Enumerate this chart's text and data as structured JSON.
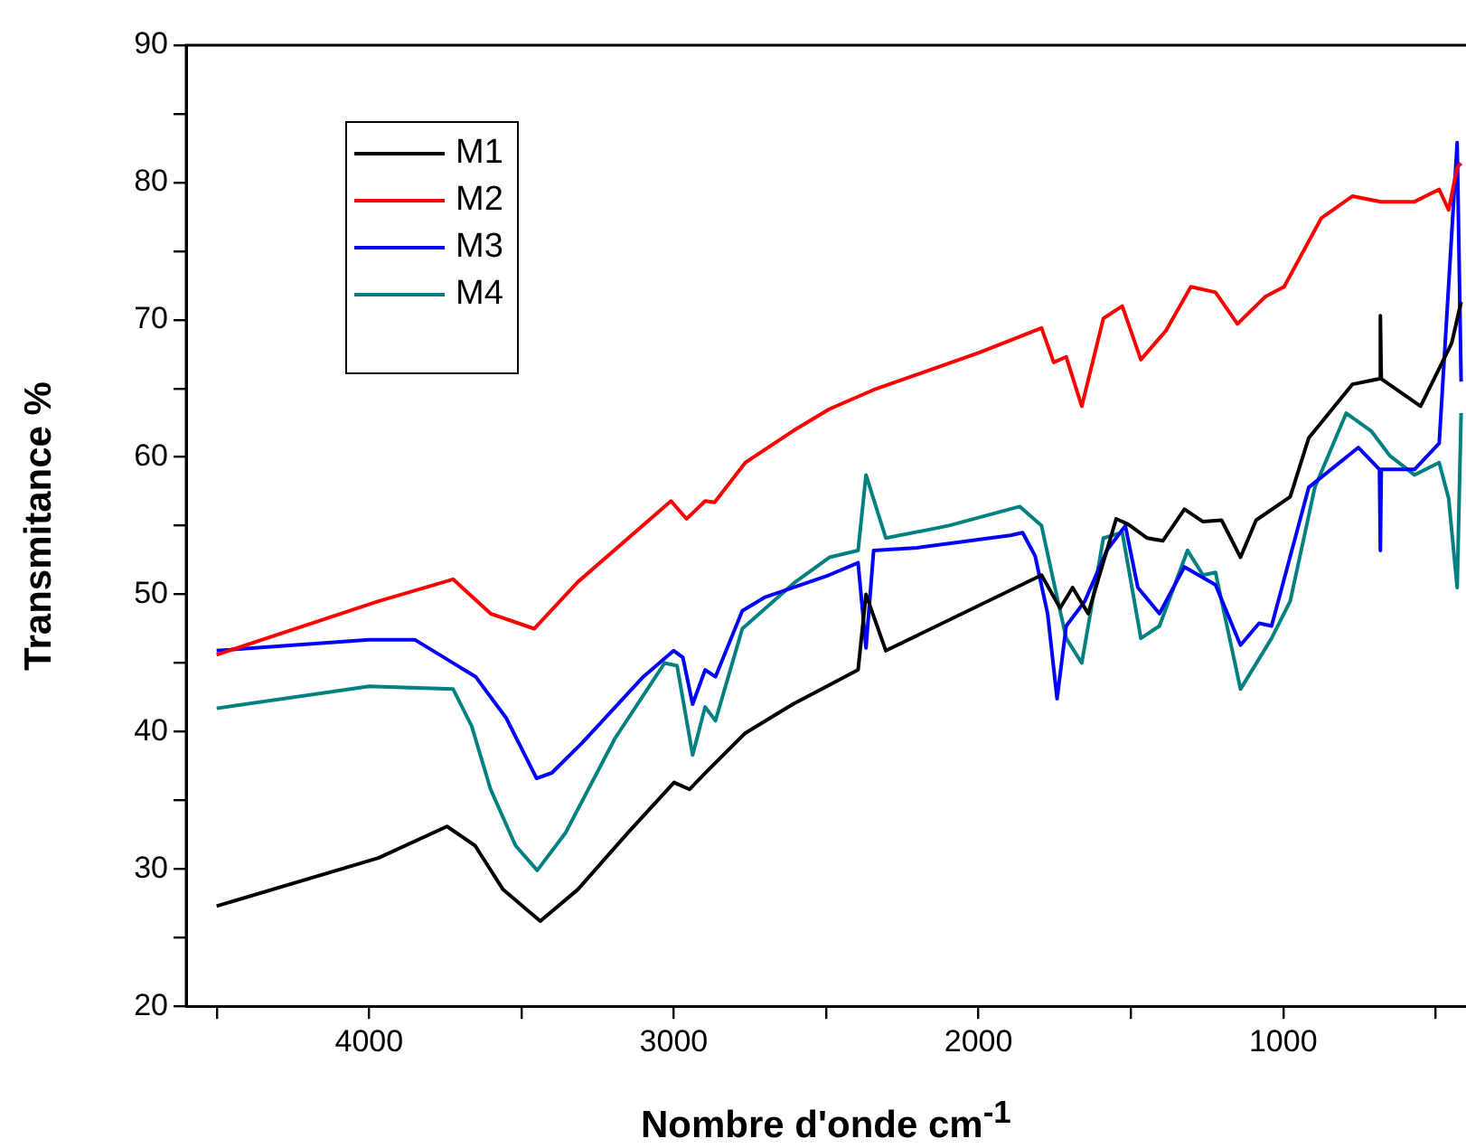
{
  "chart_data": {
    "type": "line",
    "xlabel": "Nombre d'onde cm$^{-1}$",
    "ylabel": "Transmitance %",
    "xlim": [
      4600,
      400
    ],
    "ylim": [
      20,
      90
    ],
    "xticks": [
      {
        "value": 4500,
        "label": null
      },
      4000,
      {
        "value": 3500,
        "label": null
      },
      3000,
      {
        "value": 2500,
        "label": null
      },
      2000,
      {
        "value": 1500,
        "label": null
      },
      1000,
      {
        "value": 500,
        "label": null
      }
    ],
    "yticks": [
      20,
      {
        "value": 25,
        "label": null
      },
      30,
      {
        "value": 35,
        "label": null
      },
      40,
      {
        "value": 45,
        "label": null
      },
      50,
      {
        "value": 55,
        "label": null
      },
      60,
      {
        "value": 65,
        "label": null
      },
      70,
      {
        "value": 75,
        "label": null
      },
      80,
      {
        "value": 85,
        "label": null
      },
      90
    ],
    "grid": false,
    "legend": "top left",
    "marker": "none",
    "line_style": "solid",
    "series": [
      {
        "name": "M1",
        "color": "#000000",
        "x": [
          4500,
          3969,
          3744,
          3652,
          3560,
          3438,
          3315,
          3152,
          2999,
          2948,
          2887,
          2765,
          2609,
          2489,
          2395,
          2369,
          2304,
          1793,
          1732,
          1691,
          1640,
          1548,
          1508,
          1446,
          1395,
          1324,
          1263,
          1202,
          1140,
          1089,
          977,
          916,
          773,
          684,
          681,
          678,
          549,
          447,
          416
        ],
        "values": [
          27.3,
          30.8,
          33.1,
          31.7,
          28.5,
          26.2,
          28.5,
          32.6,
          36.3,
          35.8,
          37.2,
          39.9,
          42.0,
          43.4,
          44.5,
          50.0,
          45.9,
          51.4,
          49.0,
          50.5,
          48.6,
          55.5,
          55.1,
          54.1,
          53.9,
          56.2,
          55.3,
          55.4,
          52.7,
          55.4,
          57.1,
          61.4,
          65.3,
          65.7,
          70.3,
          65.7,
          63.7,
          68.3,
          71.3
        ]
      },
      {
        "name": "M2",
        "color": "#ff0000",
        "x": [
          4500,
          3969,
          3724,
          3601,
          3458,
          3315,
          3009,
          2958,
          2897,
          2866,
          2765,
          2609,
          2489,
          2344,
          1998,
          1793,
          1753,
          1712,
          1661,
          1590,
          1528,
          1467,
          1385,
          1303,
          1222,
          1150,
          1058,
          997,
          875,
          773,
          681,
          569,
          488,
          457,
          429,
          416
        ],
        "values": [
          45.6,
          49.5,
          51.1,
          48.6,
          47.5,
          50.9,
          56.8,
          55.5,
          56.8,
          56.7,
          59.6,
          61.9,
          63.5,
          64.9,
          67.6,
          69.4,
          66.9,
          67.3,
          63.7,
          70.1,
          71.0,
          67.1,
          69.2,
          72.4,
          72.0,
          69.7,
          71.7,
          72.4,
          77.4,
          79.0,
          78.6,
          78.6,
          79.5,
          78.0,
          81.1,
          81.4
        ]
      },
      {
        "name": "M3",
        "color": "#0000ff",
        "x": [
          4500,
          4000,
          3850,
          3650,
          3550,
          3450,
          3400,
          3300,
          3100,
          3000,
          2970,
          2938,
          2897,
          2863,
          2775,
          2700,
          2491,
          2395,
          2369,
          2344,
          2201,
          1895,
          1855,
          1814,
          1773,
          1742,
          1712,
          1651,
          1579,
          1518,
          1477,
          1406,
          1324,
          1222,
          1140,
          1079,
          1038,
          916,
          753,
          684,
          681,
          678,
          569,
          488,
          429,
          416
        ],
        "values": [
          45.9,
          46.7,
          46.7,
          44.0,
          41.0,
          36.6,
          37.0,
          39.2,
          44.0,
          45.9,
          45.4,
          42.0,
          44.5,
          44.0,
          48.8,
          49.8,
          51.4,
          52.3,
          46.1,
          53.2,
          53.4,
          54.3,
          54.5,
          52.8,
          48.6,
          42.4,
          47.7,
          49.5,
          53.2,
          55.0,
          50.5,
          48.6,
          52.0,
          50.7,
          46.3,
          47.9,
          47.7,
          57.8,
          60.7,
          59.1,
          53.2,
          59.1,
          59.1,
          61.0,
          82.9,
          65.5
        ]
      },
      {
        "name": "M4",
        "color": "#008080",
        "x": [
          4500,
          4000,
          3724,
          3663,
          3601,
          3519,
          3448,
          3356,
          3193,
          3030,
          2989,
          2938,
          2897,
          2863,
          2775,
          2601,
          2489,
          2395,
          2369,
          2304,
          2099,
          1865,
          1793,
          1753,
          1712,
          1661,
          1590,
          1528,
          1467,
          1406,
          1314,
          1263,
          1222,
          1140,
          1038,
          977,
          896,
          793,
          711,
          650,
          569,
          488,
          457,
          429,
          416
        ],
        "values": [
          41.7,
          43.3,
          43.1,
          40.4,
          35.8,
          31.7,
          29.9,
          32.6,
          39.5,
          45.0,
          44.8,
          38.3,
          41.8,
          40.8,
          47.5,
          50.9,
          52.7,
          53.2,
          58.7,
          54.1,
          55.0,
          56.4,
          55.0,
          50.9,
          46.8,
          45.0,
          54.1,
          54.5,
          46.8,
          47.7,
          53.2,
          51.4,
          51.6,
          43.1,
          46.8,
          49.5,
          57.8,
          63.2,
          61.9,
          60.1,
          58.7,
          59.6,
          57.0,
          50.5,
          63.2
        ]
      }
    ]
  }
}
